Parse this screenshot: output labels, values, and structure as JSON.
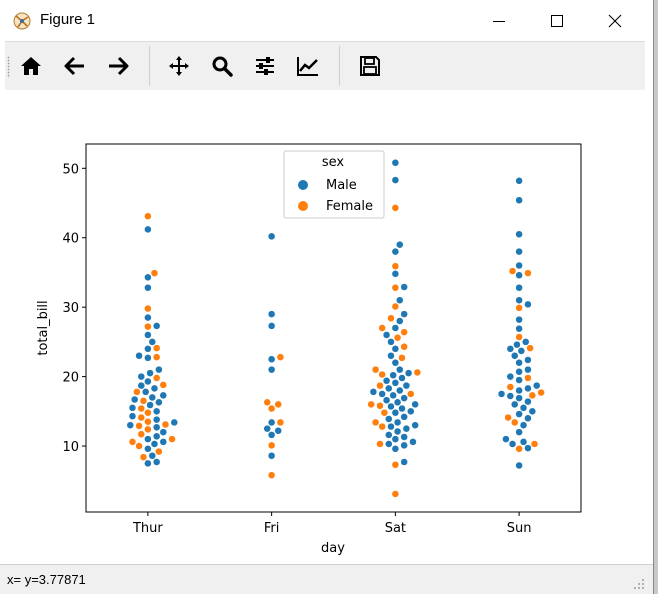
{
  "window": {
    "title": "Figure 1",
    "icon": "matplotlib-figure-icon",
    "controls": [
      "minimize-icon",
      "maximize-icon",
      "close-icon"
    ]
  },
  "toolbar": {
    "buttons": [
      {
        "name": "home-button",
        "icon": "home-icon"
      },
      {
        "name": "back-button",
        "icon": "arrow-left-icon"
      },
      {
        "name": "forward-button",
        "icon": "arrow-right-icon"
      },
      {
        "name": "pan-button",
        "icon": "move-icon"
      },
      {
        "name": "zoom-button",
        "icon": "magnifier-icon"
      },
      {
        "name": "subplots-button",
        "icon": "sliders-icon"
      },
      {
        "name": "edit-axis-button",
        "icon": "line-chart-icon"
      },
      {
        "name": "save-button",
        "icon": "floppy-disk-icon"
      }
    ]
  },
  "status": {
    "text": "x= y=3.77871"
  },
  "chart_data": {
    "type": "scatter",
    "subtype": "swarmplot",
    "xlabel": "day",
    "ylabel": "total_bill",
    "categories": [
      "Thur",
      "Fri",
      "Sat",
      "Sun"
    ],
    "yticks": [
      10,
      20,
      30,
      40,
      50
    ],
    "ylim": [
      0.5,
      53.5
    ],
    "grid": false,
    "legend": {
      "title": "sex",
      "location": "top-center",
      "entries": [
        "Male",
        "Female"
      ]
    },
    "colors": {
      "Male": "#1f77b4",
      "Female": "#ff7f0e"
    },
    "series": [
      {
        "name": "Male",
        "points": {
          "Thur": [
            7.5,
            7.7,
            8.6,
            9.6,
            10.3,
            10.6,
            11.0,
            11.4,
            12.0,
            12.7,
            13.0,
            13.4,
            13.8,
            14.3,
            15.0,
            15.5,
            15.9,
            16.3,
            16.7,
            17.0,
            17.3,
            17.8,
            18.3,
            18.7,
            19.3,
            20.0,
            20.5,
            21.0,
            22.7,
            23.0,
            24.0,
            25.0,
            26.0,
            27.3,
            28.5,
            32.8,
            34.3,
            41.2
          ],
          "Fri": [
            8.6,
            11.6,
            12.2,
            12.5,
            13.4,
            21.0,
            22.5,
            27.3,
            29.0,
            40.2
          ],
          "Sat": [
            7.7,
            9.6,
            10.1,
            10.3,
            10.6,
            11.0,
            11.3,
            11.6,
            12.1,
            12.5,
            12.8,
            13.0,
            13.4,
            13.9,
            14.2,
            14.8,
            15.0,
            15.4,
            15.7,
            16.0,
            16.3,
            16.6,
            16.9,
            17.3,
            17.5,
            17.8,
            18.0,
            18.3,
            18.7,
            19.1,
            19.4,
            19.8,
            20.2,
            20.5,
            21.0,
            22.0,
            23.0,
            24.0,
            25.0,
            26.0,
            27.0,
            28.0,
            29.0,
            31.0,
            32.9,
            34.8,
            38.0,
            39.0,
            48.3,
            50.8
          ],
          "Sun": [
            7.2,
            9.7,
            10.3,
            10.6,
            11.0,
            12.0,
            13.0,
            14.0,
            14.6,
            15.0,
            15.5,
            16.0,
            16.4,
            16.9,
            17.2,
            17.5,
            18.0,
            18.3,
            18.7,
            19.5,
            20.0,
            20.7,
            21.0,
            22.0,
            22.4,
            23.0,
            23.7,
            24.0,
            24.6,
            25.0,
            26.9,
            28.2,
            30.4,
            31.0,
            32.8,
            34.6,
            36.0,
            38.0,
            40.5,
            45.4,
            48.2
          ]
        }
      },
      {
        "name": "Female",
        "points": {
          "Thur": [
            8.4,
            9.2,
            10.0,
            10.6,
            11.0,
            11.7,
            12.4,
            12.9,
            13.1,
            13.5,
            14.1,
            14.8,
            15.4,
            16.5,
            17.8,
            18.8,
            19.8,
            22.8,
            24.1,
            27.2,
            29.8,
            34.9,
            43.1
          ],
          "Fri": [
            5.8,
            10.1,
            13.4,
            15.4,
            16.3,
            16.0,
            22.8
          ],
          "Sat": [
            3.1,
            7.3,
            10.3,
            12.8,
            13.4,
            14.8,
            15.8,
            16.0,
            17.5,
            18.7,
            20.3,
            20.6,
            21.0,
            22.7,
            24.3,
            25.6,
            26.4,
            27.0,
            28.4,
            30.1,
            32.8,
            35.9,
            44.3
          ],
          "Sun": [
            9.6,
            10.3,
            13.4,
            14.1,
            17.3,
            17.7,
            18.5,
            19.8,
            24.1,
            25.7,
            29.9,
            34.9,
            35.2
          ]
        }
      }
    ]
  }
}
